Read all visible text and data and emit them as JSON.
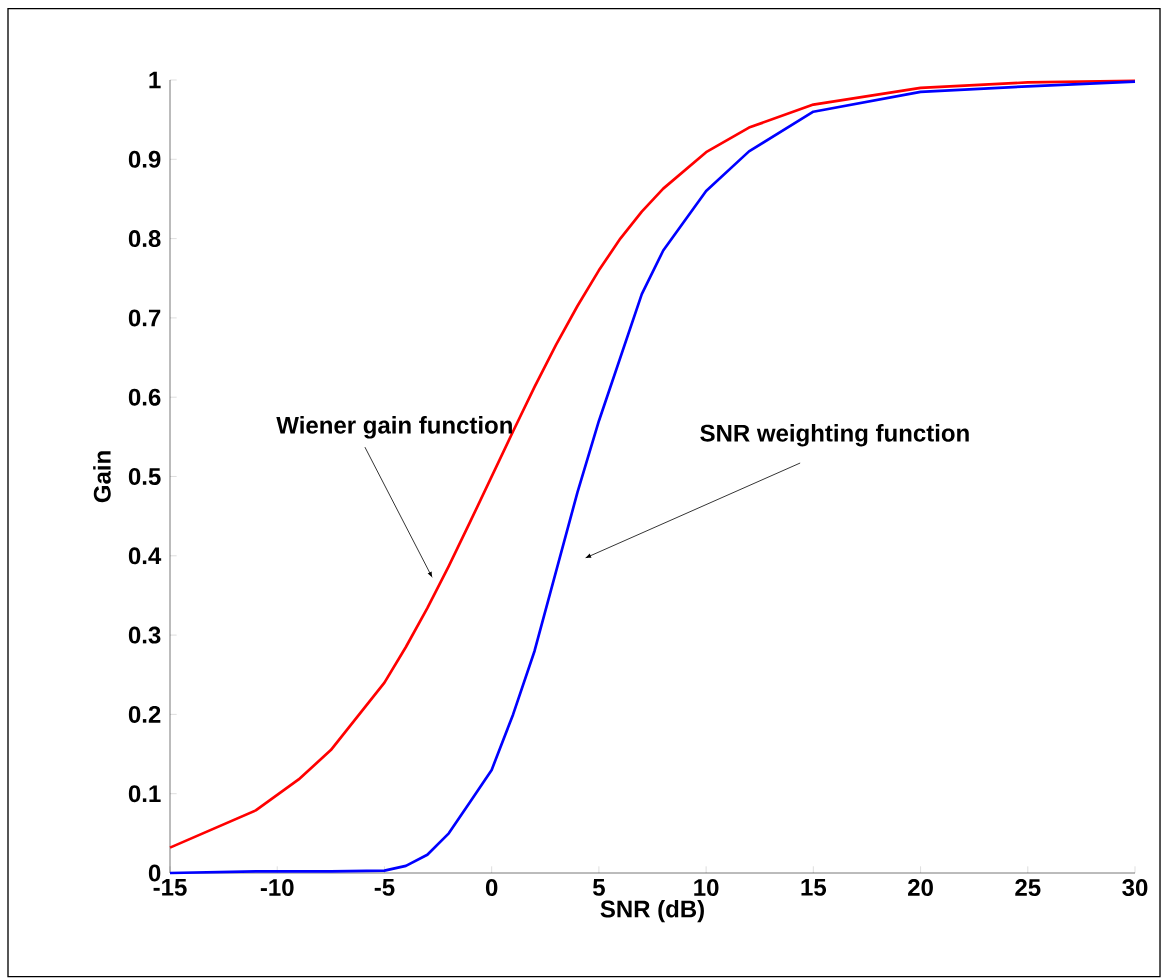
{
  "chart_data": {
    "type": "line",
    "xlabel": "SNR (dB)",
    "ylabel": "Gain",
    "x": [
      -15,
      -11,
      -9,
      -7.5,
      -5,
      -4,
      -3,
      -2,
      -1,
      0,
      1,
      2,
      3,
      4,
      5,
      6,
      7,
      8,
      10,
      12,
      15,
      20,
      25,
      30
    ],
    "series": [
      {
        "color": "#ff0000",
        "values": [
          0.032,
          0.079,
          0.118,
          0.155,
          0.24,
          0.285,
          0.334,
          0.387,
          0.443,
          0.5,
          0.557,
          0.613,
          0.666,
          0.715,
          0.76,
          0.8,
          0.834,
          0.863,
          0.909,
          0.94,
          0.969,
          0.99,
          0.997,
          0.999
        ]
      },
      {
        "color": "#0000ff",
        "values": [
          0.0,
          0.002,
          0.002,
          0.002,
          0.003,
          0.009,
          0.023,
          0.05,
          0.09,
          0.13,
          0.2,
          0.28,
          0.38,
          0.48,
          0.57,
          0.65,
          0.73,
          0.785,
          0.86,
          0.91,
          0.96,
          0.985,
          0.992,
          0.998
        ]
      }
    ],
    "xlim": [
      -15,
      30
    ],
    "ylim": [
      0,
      1
    ],
    "xticks": [
      -15,
      -10,
      -5,
      0,
      5,
      10,
      15,
      20,
      25,
      30
    ],
    "yticks": [
      0,
      0.1,
      0.2,
      0.3,
      0.4,
      0.5,
      0.6,
      0.7,
      0.8,
      0.9,
      1
    ],
    "annotations": [
      "Wiener gain function",
      "SNR weighting function"
    ],
    "grid": false,
    "marker": "none",
    "line_style": "solid"
  }
}
